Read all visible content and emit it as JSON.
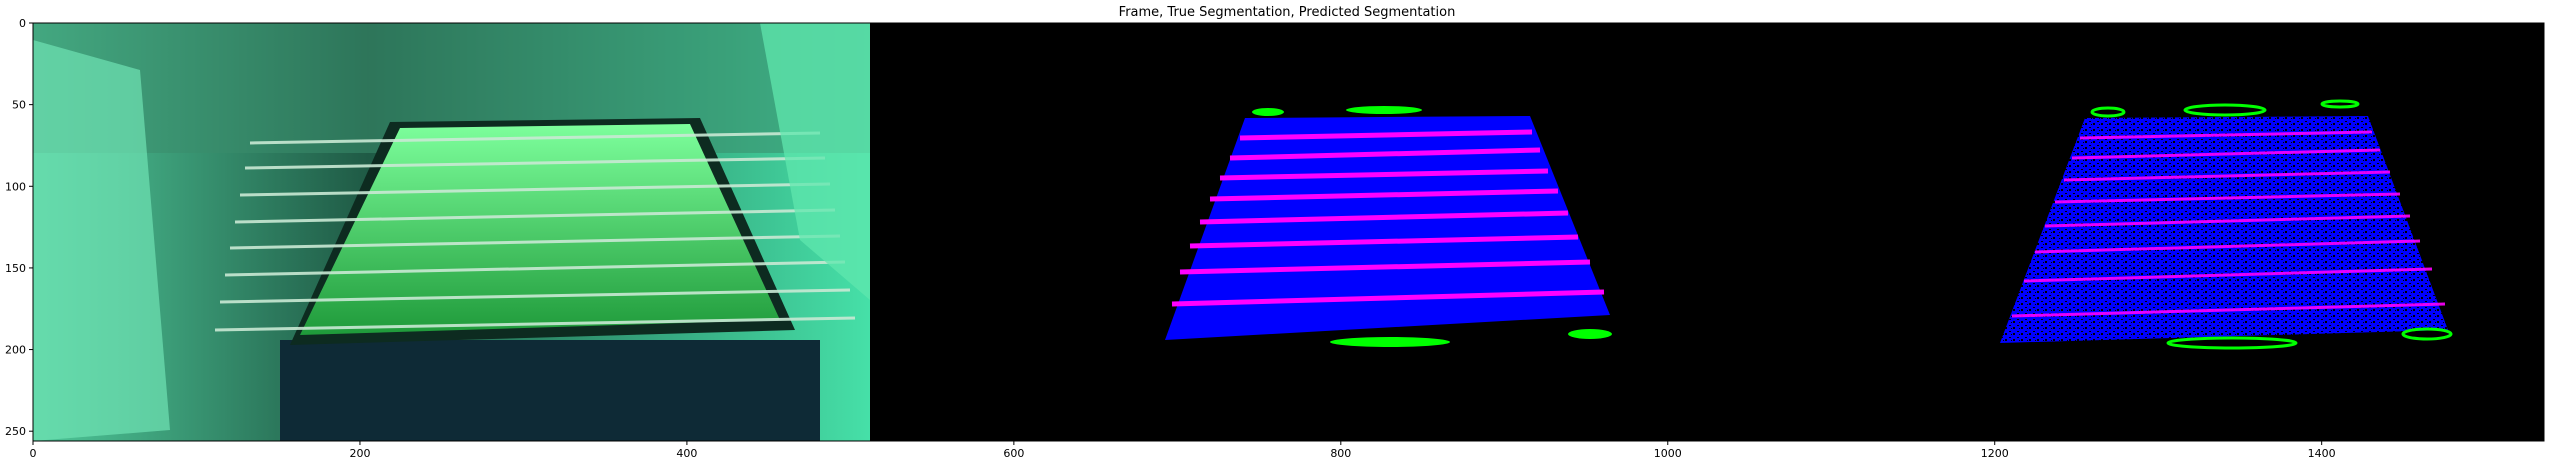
{
  "figure": {
    "title": "Frame, True Segmentation, Predicted Segmentation"
  },
  "axes": {
    "xlim": [
      0,
      1536
    ],
    "ylim": [
      256,
      0
    ],
    "xticks": [
      0,
      200,
      400,
      600,
      800,
      1000,
      1200,
      1400
    ],
    "yticks": [
      0,
      50,
      100,
      150,
      200,
      250
    ]
  },
  "panels": [
    {
      "name": "frame",
      "x_range": [
        0,
        512
      ]
    },
    {
      "name": "true-segmentation",
      "x_range": [
        512,
        1024
      ]
    },
    {
      "name": "predicted-segmentation",
      "x_range": [
        1024,
        1536
      ]
    }
  ],
  "colors": {
    "background_mask": "#000000",
    "table_class": "#0000ff",
    "rod_class": "#ff00ff",
    "player_class": "#00ff00",
    "frame_tint": "#3fd39a"
  }
}
